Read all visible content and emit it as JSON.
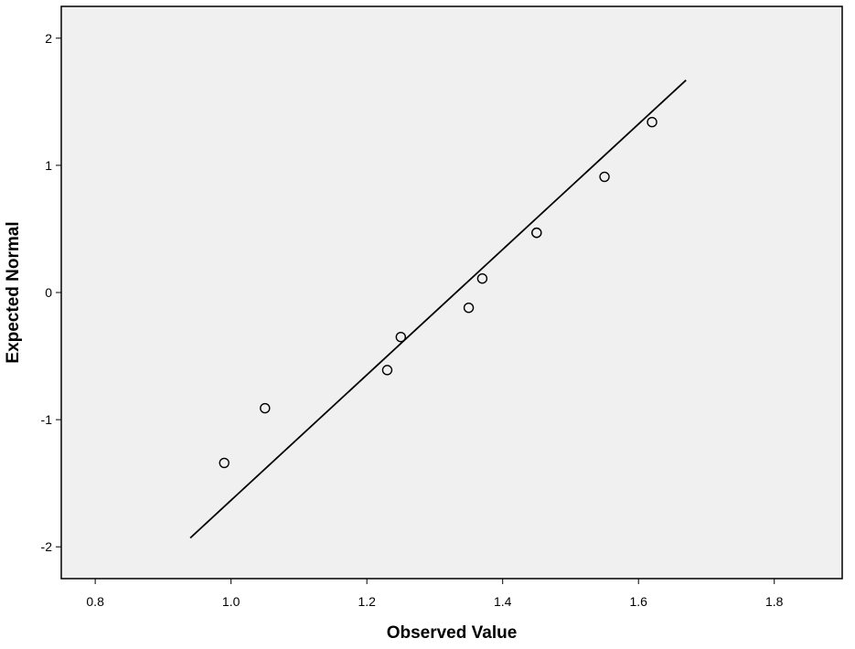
{
  "chart_data": {
    "type": "scatter",
    "title": "",
    "xlabel": "Observed Value",
    "ylabel": "Expected Normal",
    "xlim": [
      0.75,
      1.9
    ],
    "ylim": [
      -2.25,
      2.25
    ],
    "x_ticks": [
      0.8,
      1.0,
      1.2,
      1.4,
      1.6,
      1.8
    ],
    "x_tick_labels": [
      "0.8",
      "1.0",
      "1.2",
      "1.4",
      "1.6",
      "1.8"
    ],
    "y_ticks": [
      2,
      1,
      0,
      -1,
      -2
    ],
    "y_tick_labels": [
      "2",
      "1",
      "0",
      "-1",
      "-2"
    ],
    "grid": false,
    "points": [
      {
        "x": 0.99,
        "y": -1.34
      },
      {
        "x": 1.05,
        "y": -0.91
      },
      {
        "x": 1.23,
        "y": -0.61
      },
      {
        "x": 1.25,
        "y": -0.35
      },
      {
        "x": 1.35,
        "y": -0.12
      },
      {
        "x": 1.37,
        "y": 0.11
      },
      {
        "x": 1.45,
        "y": 0.47
      },
      {
        "x": 1.45,
        "y": 0.47
      },
      {
        "x": 1.55,
        "y": 0.91
      },
      {
        "x": 1.62,
        "y": 1.34
      }
    ],
    "reference_line": {
      "x": [
        0.94,
        1.67
      ],
      "y": [
        -1.93,
        1.67
      ]
    },
    "colors": {
      "plot_background": "#f0f0f0",
      "frame": "#000000",
      "marker_stroke": "#000000",
      "marker_fill": "#f0f0f0",
      "line": "#000000"
    }
  }
}
